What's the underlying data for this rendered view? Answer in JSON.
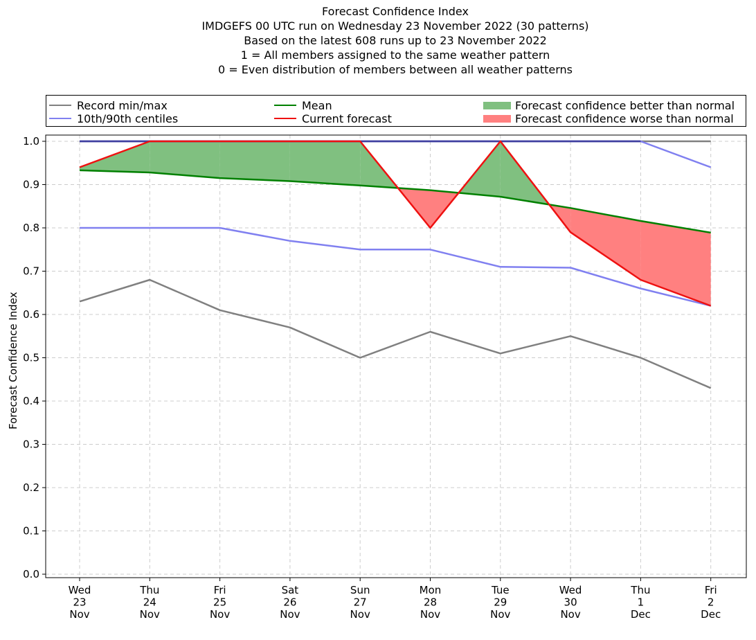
{
  "title_lines": [
    "Forecast Confidence Index",
    "IMDGEFS 00 UTC run on Wednesday 23 November 2022 (30 patterns)",
    "Based on the latest 608 runs up to 23 November 2022",
    "1 = All members assigned to the same weather pattern",
    "0 = Even distribution of members between all weather patterns"
  ],
  "legend": {
    "record": "Record min/max",
    "centiles": "10th/90th centiles",
    "mean": "Mean",
    "current": "Current forecast",
    "better": "Forecast confidence better than normal",
    "worse": "Forecast confidence worse than normal"
  },
  "colors": {
    "record": "#808080",
    "centiles": "#8080f0",
    "mean": "#008000",
    "current": "#ee1111",
    "better": "#80c080",
    "worse": "#ff8080",
    "grid": "#cccccc",
    "overlap": "#3f3fa0"
  },
  "chart_data": {
    "type": "line",
    "ylabel": "Forecast Confidence Index",
    "ylim": [
      0.0,
      1.0
    ],
    "yticks": [
      "0.0",
      "0.1",
      "0.2",
      "0.3",
      "0.4",
      "0.5",
      "0.6",
      "0.7",
      "0.8",
      "0.9",
      "1.0"
    ],
    "categories": [
      [
        "Wed",
        "23",
        "Nov"
      ],
      [
        "Thu",
        "24",
        "Nov"
      ],
      [
        "Fri",
        "25",
        "Nov"
      ],
      [
        "Sat",
        "26",
        "Nov"
      ],
      [
        "Sun",
        "27",
        "Nov"
      ],
      [
        "Mon",
        "28",
        "Nov"
      ],
      [
        "Tue",
        "29",
        "Nov"
      ],
      [
        "Wed",
        "30",
        "Nov"
      ],
      [
        "Thu",
        "1",
        "Dec"
      ],
      [
        "Fri",
        "2",
        "Dec"
      ]
    ],
    "grid": true,
    "legend_position": "top",
    "series": {
      "record_min": [
        0.63,
        0.68,
        0.61,
        0.57,
        0.5,
        0.56,
        0.51,
        0.55,
        0.5,
        0.43
      ],
      "record_max": [
        1.0,
        1.0,
        1.0,
        1.0,
        1.0,
        1.0,
        1.0,
        1.0,
        1.0,
        1.0
      ],
      "p10": [
        0.8,
        0.8,
        0.8,
        0.77,
        0.75,
        0.75,
        0.71,
        0.708,
        0.66,
        0.62
      ],
      "p90": [
        1.0,
        1.0,
        1.0,
        1.0,
        1.0,
        1.0,
        1.0,
        1.0,
        1.0,
        0.94
      ],
      "mean": [
        0.933,
        0.928,
        0.915,
        0.908,
        0.898,
        0.887,
        0.872,
        0.846,
        0.816,
        0.789
      ],
      "current": [
        0.94,
        1.0,
        1.0,
        1.0,
        1.0,
        0.8,
        1.0,
        0.79,
        0.68,
        0.62
      ]
    }
  }
}
